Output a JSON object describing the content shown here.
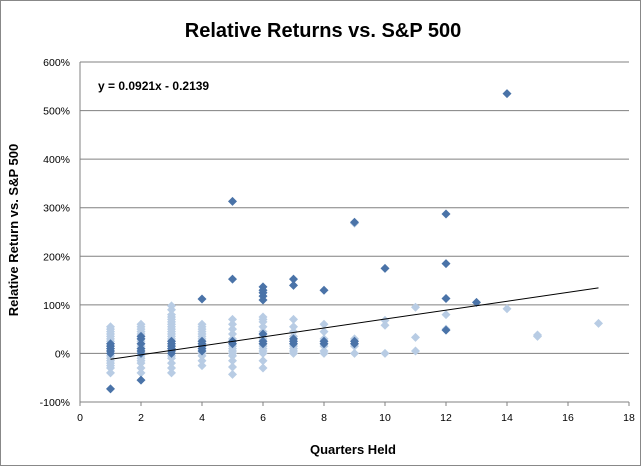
{
  "chart_data": {
    "type": "scatter",
    "title": "Relative Returns vs. S&P 500",
    "xlabel": "Quarters Held",
    "ylabel": "Relative Return vs. S&P 500",
    "xlim": [
      0,
      18
    ],
    "ylim": [
      -100,
      600
    ],
    "x_ticks": [
      0,
      2,
      4,
      6,
      8,
      10,
      12,
      14,
      16,
      18
    ],
    "x_tick_labels": [
      "0",
      "2",
      "4",
      "6",
      "8",
      "10",
      "12",
      "14",
      "16",
      "18"
    ],
    "y_ticks": [
      -100,
      0,
      100,
      200,
      300,
      400,
      500,
      600
    ],
    "y_tick_labels": [
      "-100%",
      "0%",
      "100%",
      "200%",
      "300%",
      "400%",
      "500%",
      "600%"
    ],
    "y_unit": "%",
    "grid": "horizontal",
    "trendline": {
      "equation": "y = 0.0921x - 0.2139",
      "x": [
        1,
        17
      ],
      "y": [
        -12,
        135
      ]
    },
    "series": [
      {
        "color": "#4a73a8",
        "points": [
          [
            1,
            -73
          ],
          [
            1,
            0
          ],
          [
            1,
            5
          ],
          [
            1,
            10
          ],
          [
            1,
            15
          ],
          [
            1,
            20
          ],
          [
            2,
            -55
          ],
          [
            2,
            0
          ],
          [
            2,
            5
          ],
          [
            2,
            10
          ],
          [
            2,
            20
          ],
          [
            2,
            30
          ],
          [
            2,
            35
          ],
          [
            3,
            0
          ],
          [
            3,
            5
          ],
          [
            3,
            10
          ],
          [
            3,
            15
          ],
          [
            3,
            20
          ],
          [
            3,
            25
          ],
          [
            4,
            112
          ],
          [
            4,
            5
          ],
          [
            4,
            10
          ],
          [
            4,
            15
          ],
          [
            4,
            20
          ],
          [
            4,
            25
          ],
          [
            5,
            313
          ],
          [
            5,
            153
          ],
          [
            5,
            20
          ],
          [
            5,
            25
          ],
          [
            6,
            137
          ],
          [
            6,
            130
          ],
          [
            6,
            125
          ],
          [
            6,
            118
          ],
          [
            6,
            110
          ],
          [
            6,
            40
          ],
          [
            6,
            20
          ],
          [
            6,
            25
          ],
          [
            7,
            153
          ],
          [
            7,
            140
          ],
          [
            7,
            20
          ],
          [
            7,
            25
          ],
          [
            7,
            30
          ],
          [
            8,
            130
          ],
          [
            8,
            20
          ],
          [
            8,
            25
          ],
          [
            9,
            270
          ],
          [
            9,
            20
          ],
          [
            9,
            25
          ],
          [
            10,
            175
          ],
          [
            12,
            287
          ],
          [
            12,
            185
          ],
          [
            12,
            113
          ],
          [
            12,
            48
          ],
          [
            13,
            105
          ],
          [
            14,
            535
          ]
        ]
      },
      {
        "color": "#b8cce4",
        "points": [
          [
            1,
            -40
          ],
          [
            1,
            -30
          ],
          [
            1,
            -25
          ],
          [
            1,
            -20
          ],
          [
            1,
            -15
          ],
          [
            1,
            -10
          ],
          [
            1,
            -5
          ],
          [
            1,
            25
          ],
          [
            1,
            30
          ],
          [
            1,
            35
          ],
          [
            1,
            40
          ],
          [
            1,
            45
          ],
          [
            1,
            50
          ],
          [
            1,
            55
          ],
          [
            2,
            -40
          ],
          [
            2,
            -30
          ],
          [
            2,
            -20
          ],
          [
            2,
            -15
          ],
          [
            2,
            -10
          ],
          [
            2,
            -5
          ],
          [
            2,
            15
          ],
          [
            2,
            25
          ],
          [
            2,
            40
          ],
          [
            2,
            45
          ],
          [
            2,
            50
          ],
          [
            2,
            55
          ],
          [
            2,
            60
          ],
          [
            3,
            -40
          ],
          [
            3,
            -30
          ],
          [
            3,
            -20
          ],
          [
            3,
            -10
          ],
          [
            3,
            -5
          ],
          [
            3,
            30
          ],
          [
            3,
            35
          ],
          [
            3,
            40
          ],
          [
            3,
            45
          ],
          [
            3,
            50
          ],
          [
            3,
            55
          ],
          [
            3,
            60
          ],
          [
            3,
            65
          ],
          [
            3,
            70
          ],
          [
            3,
            75
          ],
          [
            3,
            80
          ],
          [
            3,
            90
          ],
          [
            3,
            98
          ],
          [
            4,
            -25
          ],
          [
            4,
            -15
          ],
          [
            4,
            -5
          ],
          [
            4,
            0
          ],
          [
            4,
            30
          ],
          [
            4,
            35
          ],
          [
            4,
            40
          ],
          [
            4,
            45
          ],
          [
            4,
            50
          ],
          [
            4,
            55
          ],
          [
            4,
            60
          ],
          [
            5,
            -43
          ],
          [
            5,
            -28
          ],
          [
            5,
            -15
          ],
          [
            5,
            -5
          ],
          [
            5,
            0
          ],
          [
            5,
            5
          ],
          [
            5,
            10
          ],
          [
            5,
            15
          ],
          [
            5,
            30
          ],
          [
            5,
            40
          ],
          [
            5,
            50
          ],
          [
            5,
            60
          ],
          [
            5,
            70
          ],
          [
            6,
            -30
          ],
          [
            6,
            -15
          ],
          [
            6,
            0
          ],
          [
            6,
            5
          ],
          [
            6,
            10
          ],
          [
            6,
            15
          ],
          [
            6,
            30
          ],
          [
            6,
            35
          ],
          [
            6,
            45
          ],
          [
            6,
            55
          ],
          [
            6,
            65
          ],
          [
            6,
            70
          ],
          [
            6,
            75
          ],
          [
            7,
            0
          ],
          [
            7,
            5
          ],
          [
            7,
            10
          ],
          [
            7,
            15
          ],
          [
            7,
            35
          ],
          [
            7,
            45
          ],
          [
            7,
            55
          ],
          [
            7,
            70
          ],
          [
            8,
            0
          ],
          [
            8,
            5
          ],
          [
            8,
            15
          ],
          [
            8,
            30
          ],
          [
            8,
            45
          ],
          [
            8,
            60
          ],
          [
            9,
            268
          ],
          [
            9,
            0
          ],
          [
            9,
            15
          ],
          [
            9,
            30
          ],
          [
            10,
            0
          ],
          [
            10,
            58
          ],
          [
            10,
            68
          ],
          [
            11,
            5
          ],
          [
            11,
            33
          ],
          [
            11,
            95
          ],
          [
            12,
            50
          ],
          [
            12,
            80
          ],
          [
            14,
            92
          ],
          [
            15,
            35
          ],
          [
            15,
            38
          ],
          [
            17,
            62
          ]
        ]
      }
    ]
  }
}
